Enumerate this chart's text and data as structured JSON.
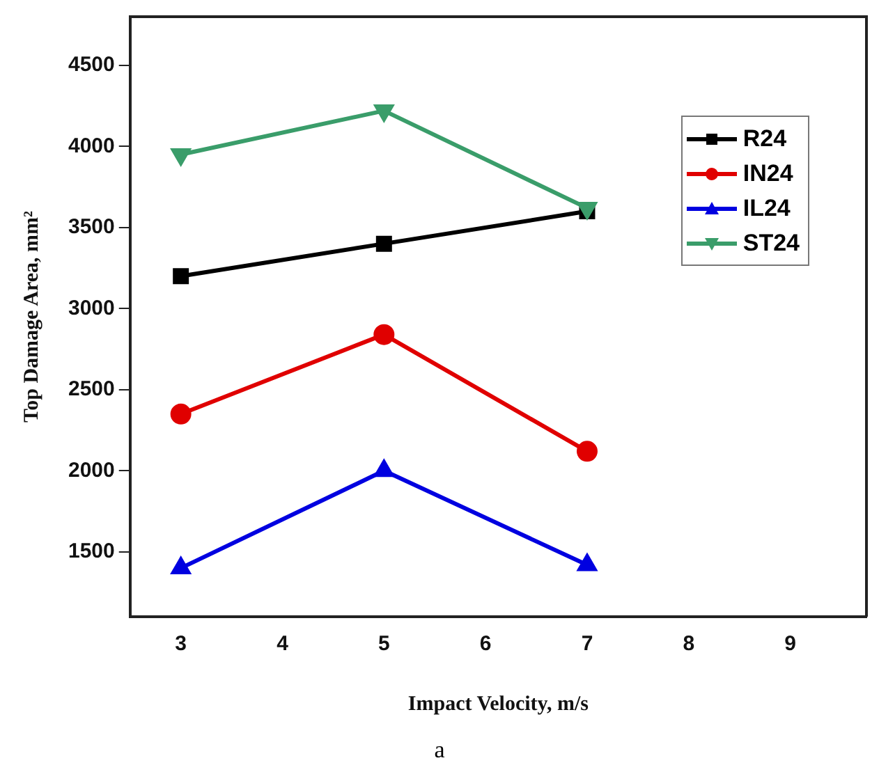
{
  "chart_data": {
    "type": "line",
    "xlabel": "Impact Velocity, m/s",
    "ylabel": "Top Damage Area, mm²",
    "x": [
      3,
      5,
      7
    ],
    "series": [
      {
        "name": "R24",
        "color": "#000000",
        "values": [
          3200,
          3400,
          3600
        ],
        "marker": "square"
      },
      {
        "name": "IN24",
        "color": "#e00000",
        "values": [
          2350,
          2840,
          2120
        ],
        "marker": "circle"
      },
      {
        "name": "IL24",
        "color": "#0000e0",
        "values": [
          1400,
          2000,
          1420
        ],
        "marker": "triangle"
      },
      {
        "name": "ST24",
        "color": "#3a9d6a",
        "values": [
          3950,
          4220,
          3620
        ],
        "marker": "triangle-down"
      }
    ],
    "xlim": [
      2.5,
      9.75
    ],
    "xticks": [
      3,
      4,
      5,
      6,
      7,
      8,
      9
    ],
    "ylim": [
      1100,
      4800
    ],
    "yticks": [
      1500,
      2000,
      2500,
      3000,
      3500,
      4000,
      4500
    ],
    "grid": false,
    "legend": "top right",
    "annotations": [
      "a"
    ]
  }
}
